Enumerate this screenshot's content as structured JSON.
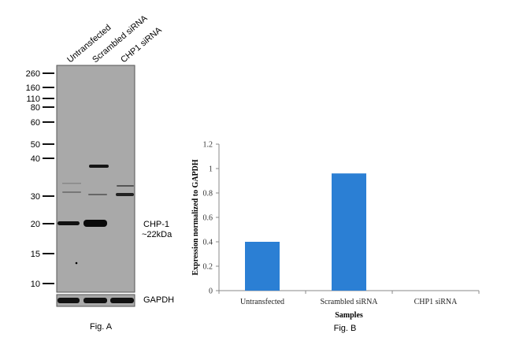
{
  "figure_a": {
    "caption": "Fig. A",
    "lanes": [
      "Untransfected",
      "Scrambled siRNA",
      "CHP1 siRNA"
    ],
    "markers": [
      "260",
      "160",
      "110",
      "80",
      "60",
      "50",
      "40",
      "30",
      "20",
      "15",
      "10"
    ],
    "target_label": "CHP-1",
    "target_size": "~22kDa",
    "loading_control": "GAPDH"
  },
  "chart_data": {
    "type": "bar",
    "caption": "Fig. B",
    "categories": [
      "Untransfected",
      "Scrambled siRNA",
      "CHP1 siRNA"
    ],
    "values": [
      0.4,
      0.96,
      0
    ],
    "xlabel": "Samples",
    "ylabel": "Expression normalized to GAPDH",
    "ylim": [
      0,
      1.2
    ],
    "yticks": [
      "0",
      "0.2",
      "0.4",
      "0.6",
      "0.8",
      "1",
      "1.2"
    ],
    "grid": false,
    "bar_color": "#2b7fd4"
  }
}
